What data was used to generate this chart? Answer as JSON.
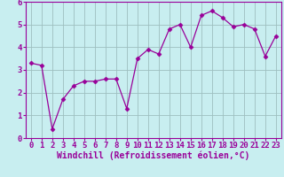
{
  "x": [
    0,
    1,
    2,
    3,
    4,
    5,
    6,
    7,
    8,
    9,
    10,
    11,
    12,
    13,
    14,
    15,
    16,
    17,
    18,
    19,
    20,
    21,
    22,
    23
  ],
  "y": [
    3.3,
    3.2,
    0.4,
    1.7,
    2.3,
    2.5,
    2.5,
    2.6,
    2.6,
    1.3,
    3.5,
    3.9,
    3.7,
    4.8,
    5.0,
    4.0,
    5.4,
    5.6,
    5.3,
    4.9,
    5.0,
    4.8,
    3.6,
    4.5
  ],
  "line_color": "#990099",
  "marker": "D",
  "marker_size": 2.5,
  "bg_color": "#c8eef0",
  "grid_color": "#9dbfbf",
  "xlabel": "Windchill (Refroidissement éolien,°C)",
  "xlim": [
    -0.5,
    23.5
  ],
  "ylim": [
    0,
    6
  ],
  "yticks": [
    0,
    1,
    2,
    3,
    4,
    5,
    6
  ],
  "xticks": [
    0,
    1,
    2,
    3,
    4,
    5,
    6,
    7,
    8,
    9,
    10,
    11,
    12,
    13,
    14,
    15,
    16,
    17,
    18,
    19,
    20,
    21,
    22,
    23
  ],
  "xlabel_fontsize": 7,
  "tick_fontsize": 6.5
}
